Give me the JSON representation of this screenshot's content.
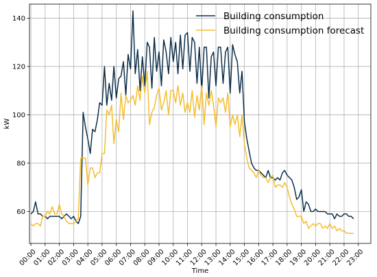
{
  "chart_data": {
    "type": "line",
    "title": "",
    "xlabel": "Time",
    "ylabel": "kW",
    "ylim": [
      46.8,
      145.8
    ],
    "xlim": [
      -0.1,
      23.88
    ],
    "yticks": [
      60,
      80,
      100,
      120,
      140
    ],
    "xticks": [
      {
        "pos": 0,
        "label": "00:00"
      },
      {
        "pos": 1,
        "label": "01:00"
      },
      {
        "pos": 2,
        "label": "02:00"
      },
      {
        "pos": 3,
        "label": "03:00"
      },
      {
        "pos": 4,
        "label": "04:00"
      },
      {
        "pos": 5,
        "label": "05:00"
      },
      {
        "pos": 6,
        "label": "06:00"
      },
      {
        "pos": 7,
        "label": "07:00"
      },
      {
        "pos": 8,
        "label": "08:00"
      },
      {
        "pos": 9,
        "label": "09:00"
      },
      {
        "pos": 10,
        "label": "10:00"
      },
      {
        "pos": 11,
        "label": "11:00"
      },
      {
        "pos": 12,
        "label": "12:00"
      },
      {
        "pos": 13,
        "label": "13:00"
      },
      {
        "pos": 14,
        "label": "14:00"
      },
      {
        "pos": 15,
        "label": "15:00"
      },
      {
        "pos": 16,
        "label": "16:00"
      },
      {
        "pos": 17,
        "label": "17:00"
      },
      {
        "pos": 18,
        "label": "18:00"
      },
      {
        "pos": 19,
        "label": "19:00"
      },
      {
        "pos": 20,
        "label": "20:00"
      },
      {
        "pos": 21,
        "label": "21:00"
      },
      {
        "pos": 22,
        "label": "22:00"
      },
      {
        "pos": 23,
        "label": "23:00"
      }
    ],
    "grid": true,
    "legend_position": "top-right",
    "series": [
      {
        "name": "Building consumption",
        "color": "#0b2d48",
        "points": [
          [
            0.0,
            59
          ],
          [
            0.17,
            60
          ],
          [
            0.33,
            64
          ],
          [
            0.5,
            59
          ],
          [
            0.67,
            59
          ],
          [
            0.83,
            58
          ],
          [
            1.0,
            58
          ],
          [
            1.17,
            57
          ],
          [
            1.33,
            58
          ],
          [
            1.5,
            58
          ],
          [
            1.67,
            58
          ],
          [
            1.83,
            58
          ],
          [
            2.0,
            58
          ],
          [
            2.17,
            57
          ],
          [
            2.33,
            58
          ],
          [
            2.5,
            59
          ],
          [
            2.67,
            58
          ],
          [
            2.83,
            57
          ],
          [
            3.0,
            58
          ],
          [
            3.17,
            56
          ],
          [
            3.33,
            55
          ],
          [
            3.5,
            58
          ],
          [
            3.67,
            101
          ],
          [
            3.83,
            95
          ],
          [
            4.0,
            90
          ],
          [
            4.17,
            84
          ],
          [
            4.33,
            94
          ],
          [
            4.5,
            93
          ],
          [
            4.67,
            98
          ],
          [
            4.83,
            105
          ],
          [
            5.0,
            104
          ],
          [
            5.17,
            120
          ],
          [
            5.33,
            104
          ],
          [
            5.5,
            113
          ],
          [
            5.67,
            106
          ],
          [
            5.83,
            120
          ],
          [
            6.0,
            107
          ],
          [
            6.17,
            115
          ],
          [
            6.33,
            116
          ],
          [
            6.5,
            122
          ],
          [
            6.67,
            108
          ],
          [
            6.83,
            125
          ],
          [
            7.0,
            119
          ],
          [
            7.17,
            143
          ],
          [
            7.33,
            117
          ],
          [
            7.5,
            127
          ],
          [
            7.67,
            110
          ],
          [
            7.83,
            124
          ],
          [
            8.0,
            112
          ],
          [
            8.17,
            130
          ],
          [
            8.33,
            128
          ],
          [
            8.5,
            111
          ],
          [
            8.67,
            132
          ],
          [
            8.83,
            118
          ],
          [
            9.0,
            126
          ],
          [
            9.17,
            112
          ],
          [
            9.33,
            131
          ],
          [
            9.5,
            126
          ],
          [
            9.67,
            117
          ],
          [
            9.83,
            132
          ],
          [
            10.0,
            122
          ],
          [
            10.17,
            130
          ],
          [
            10.33,
            117
          ],
          [
            10.5,
            133
          ],
          [
            10.67,
            119
          ],
          [
            10.83,
            133
          ],
          [
            11.0,
            134
          ],
          [
            11.17,
            118
          ],
          [
            11.33,
            132
          ],
          [
            11.5,
            130
          ],
          [
            11.67,
            113
          ],
          [
            11.83,
            128
          ],
          [
            12.0,
            110
          ],
          [
            12.17,
            128
          ],
          [
            12.33,
            128
          ],
          [
            12.5,
            107
          ],
          [
            12.67,
            124
          ],
          [
            12.83,
            126
          ],
          [
            13.0,
            112
          ],
          [
            13.17,
            128
          ],
          [
            13.33,
            128
          ],
          [
            13.5,
            113
          ],
          [
            13.67,
            126
          ],
          [
            13.83,
            128
          ],
          [
            14.0,
            109
          ],
          [
            14.17,
            129
          ],
          [
            14.33,
            125
          ],
          [
            14.5,
            122
          ],
          [
            14.67,
            109
          ],
          [
            14.83,
            118
          ],
          [
            15.0,
            97
          ],
          [
            15.17,
            90
          ],
          [
            15.33,
            85
          ],
          [
            15.5,
            80
          ],
          [
            15.67,
            78
          ],
          [
            15.83,
            77
          ],
          [
            16.0,
            77
          ],
          [
            16.17,
            76
          ],
          [
            16.33,
            75
          ],
          [
            16.5,
            74
          ],
          [
            16.67,
            77
          ],
          [
            16.83,
            74
          ],
          [
            17.0,
            74
          ],
          [
            17.17,
            73
          ],
          [
            17.33,
            74
          ],
          [
            17.5,
            73
          ],
          [
            17.67,
            76
          ],
          [
            17.83,
            77
          ],
          [
            18.0,
            75
          ],
          [
            18.17,
            74
          ],
          [
            18.33,
            73
          ],
          [
            18.5,
            70
          ],
          [
            18.67,
            65
          ],
          [
            18.83,
            66
          ],
          [
            19.0,
            69
          ],
          [
            19.17,
            60
          ],
          [
            19.33,
            64
          ],
          [
            19.5,
            63
          ],
          [
            19.67,
            60
          ],
          [
            19.83,
            60
          ],
          [
            20.0,
            61
          ],
          [
            20.17,
            60
          ],
          [
            20.33,
            60
          ],
          [
            20.5,
            60
          ],
          [
            20.67,
            60
          ],
          [
            20.83,
            59
          ],
          [
            21.0,
            59
          ],
          [
            21.17,
            59
          ],
          [
            21.33,
            57
          ],
          [
            21.5,
            59
          ],
          [
            21.67,
            58
          ],
          [
            21.83,
            58
          ],
          [
            22.0,
            59
          ],
          [
            22.17,
            59
          ],
          [
            22.33,
            58
          ],
          [
            22.5,
            58
          ],
          [
            22.67,
            57
          ]
        ]
      },
      {
        "name": "Building consumption forecast",
        "color": "#f5bd2c",
        "points": [
          [
            0.0,
            55
          ],
          [
            0.17,
            54
          ],
          [
            0.33,
            55
          ],
          [
            0.5,
            55
          ],
          [
            0.67,
            54
          ],
          [
            0.83,
            58
          ],
          [
            1.0,
            58
          ],
          [
            1.17,
            60
          ],
          [
            1.33,
            59
          ],
          [
            1.5,
            62
          ],
          [
            1.67,
            59
          ],
          [
            1.83,
            59
          ],
          [
            2.0,
            63
          ],
          [
            2.17,
            59
          ],
          [
            2.33,
            58
          ],
          [
            2.5,
            56
          ],
          [
            2.67,
            55
          ],
          [
            2.83,
            55
          ],
          [
            3.0,
            55
          ],
          [
            3.17,
            56
          ],
          [
            3.33,
            57
          ],
          [
            3.5,
            82
          ],
          [
            3.67,
            82
          ],
          [
            3.83,
            82
          ],
          [
            4.0,
            71
          ],
          [
            4.17,
            78
          ],
          [
            4.33,
            78
          ],
          [
            4.5,
            74
          ],
          [
            4.67,
            76
          ],
          [
            4.83,
            76
          ],
          [
            5.0,
            84
          ],
          [
            5.17,
            84
          ],
          [
            5.33,
            102
          ],
          [
            5.5,
            100
          ],
          [
            5.67,
            104
          ],
          [
            5.83,
            88
          ],
          [
            6.0,
            98
          ],
          [
            6.17,
            93
          ],
          [
            6.33,
            109
          ],
          [
            6.5,
            98
          ],
          [
            6.67,
            108
          ],
          [
            6.83,
            105
          ],
          [
            7.0,
            106
          ],
          [
            7.17,
            108
          ],
          [
            7.33,
            104
          ],
          [
            7.5,
            112
          ],
          [
            7.67,
            106
          ],
          [
            7.83,
            116
          ],
          [
            8.0,
            109
          ],
          [
            8.17,
            118
          ],
          [
            8.33,
            96
          ],
          [
            8.5,
            101
          ],
          [
            8.67,
            103
          ],
          [
            8.83,
            108
          ],
          [
            9.0,
            111
          ],
          [
            9.17,
            102
          ],
          [
            9.33,
            105
          ],
          [
            9.5,
            110
          ],
          [
            9.67,
            100
          ],
          [
            9.83,
            110
          ],
          [
            10.0,
            110
          ],
          [
            10.17,
            105
          ],
          [
            10.33,
            112
          ],
          [
            10.5,
            104
          ],
          [
            10.67,
            109
          ],
          [
            10.83,
            101
          ],
          [
            11.0,
            105
          ],
          [
            11.17,
            101
          ],
          [
            11.33,
            110
          ],
          [
            11.5,
            99
          ],
          [
            11.67,
            108
          ],
          [
            11.83,
            102
          ],
          [
            12.0,
            112
          ],
          [
            12.17,
            96
          ],
          [
            12.33,
            109
          ],
          [
            12.5,
            104
          ],
          [
            12.67,
            110
          ],
          [
            12.83,
            104
          ],
          [
            13.0,
            95
          ],
          [
            13.17,
            107
          ],
          [
            13.33,
            105
          ],
          [
            13.5,
            107
          ],
          [
            13.67,
            101
          ],
          [
            13.83,
            109
          ],
          [
            14.0,
            95
          ],
          [
            14.17,
            100
          ],
          [
            14.33,
            96
          ],
          [
            14.5,
            100
          ],
          [
            14.67,
            91
          ],
          [
            14.83,
            100
          ],
          [
            15.0,
            88
          ],
          [
            15.17,
            82
          ],
          [
            15.33,
            78
          ],
          [
            15.5,
            77
          ],
          [
            15.67,
            76
          ],
          [
            15.83,
            74
          ],
          [
            16.0,
            77
          ],
          [
            16.17,
            75
          ],
          [
            16.33,
            74
          ],
          [
            16.5,
            74
          ],
          [
            16.67,
            72
          ],
          [
            16.83,
            74
          ],
          [
            17.0,
            75
          ],
          [
            17.17,
            70
          ],
          [
            17.33,
            71
          ],
          [
            17.5,
            71
          ],
          [
            17.67,
            70
          ],
          [
            17.83,
            72
          ],
          [
            18.0,
            70
          ],
          [
            18.17,
            66
          ],
          [
            18.33,
            63
          ],
          [
            18.5,
            61
          ],
          [
            18.67,
            58
          ],
          [
            18.83,
            58
          ],
          [
            19.0,
            58
          ],
          [
            19.17,
            55
          ],
          [
            19.33,
            56
          ],
          [
            19.5,
            53
          ],
          [
            19.67,
            54
          ],
          [
            19.83,
            55
          ],
          [
            20.0,
            54
          ],
          [
            20.17,
            55
          ],
          [
            20.33,
            55
          ],
          [
            20.5,
            53
          ],
          [
            20.67,
            54
          ],
          [
            20.83,
            53
          ],
          [
            21.0,
            55
          ],
          [
            21.17,
            53
          ],
          [
            21.33,
            54
          ],
          [
            21.5,
            52
          ],
          [
            21.67,
            53
          ],
          [
            21.83,
            52
          ],
          [
            22.0,
            52
          ],
          [
            22.17,
            51
          ],
          [
            22.33,
            51
          ],
          [
            22.5,
            51
          ],
          [
            22.67,
            51
          ]
        ]
      }
    ]
  }
}
